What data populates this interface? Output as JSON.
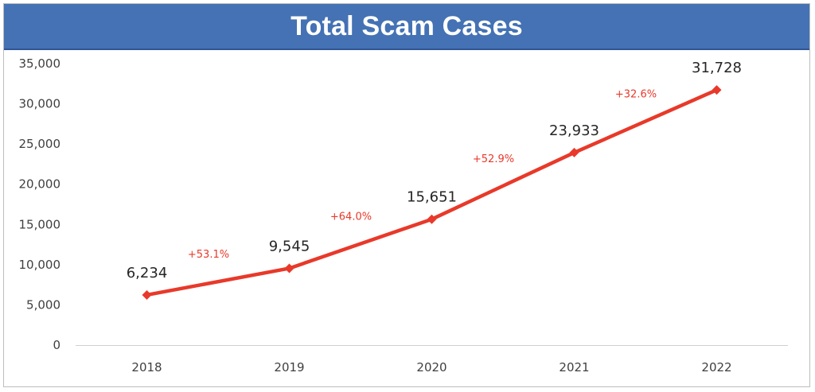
{
  "chart_data": {
    "type": "line",
    "title": "Total Scam Cases",
    "xlabel": "",
    "ylabel": "",
    "categories": [
      "2018",
      "2019",
      "2020",
      "2021",
      "2022"
    ],
    "series": [
      {
        "values": [
          6234,
          9545,
          15651,
          23933,
          31728
        ]
      }
    ],
    "data_labels": [
      "6,234",
      "9,545",
      "15,651",
      "23,933",
      "31,728"
    ],
    "growth_labels": [
      "+53.1%",
      "+64.0%",
      "+52.9%",
      "+32.6%"
    ],
    "y_ticks": [
      "0",
      "5,000",
      "10,000",
      "15,000",
      "20,000",
      "25,000",
      "30,000",
      "35,000"
    ],
    "ylim": [
      0,
      35000
    ],
    "grid": false,
    "legend": "none",
    "marker": "diamond",
    "colors": {
      "line": "#e8392a",
      "title_bar": "#4472b4",
      "growth_text": "#e8392a"
    }
  }
}
